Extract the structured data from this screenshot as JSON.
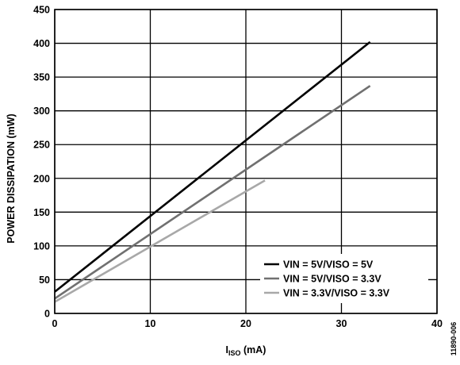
{
  "chart_data": {
    "type": "line",
    "xlabel_main": "I",
    "xlabel_sub": "ISO",
    "xlabel_unit": " (mA)",
    "ylabel": "POWER DISSIPATION (mW)",
    "xlim": [
      0,
      40
    ],
    "ylim": [
      0,
      450
    ],
    "x_ticks": [
      "0",
      "10",
      "20",
      "30",
      "40"
    ],
    "y_ticks": [
      "0",
      "50",
      "100",
      "150",
      "200",
      "250",
      "300",
      "350",
      "400",
      "450"
    ],
    "grid": true,
    "legend_position": "bottom-right",
    "series": [
      {
        "name": "VIN = 5V/VISO = 5V",
        "color": "#000000",
        "x": [
          0,
          33
        ],
        "y": [
          32,
          402
        ]
      },
      {
        "name": "VIN = 5V/VISO = 3.3V",
        "color": "#707070",
        "x": [
          0,
          33
        ],
        "y": [
          22,
          337
        ]
      },
      {
        "name": "VIN = 3.3V/VISO = 3.3V",
        "color": "#a8a8a8",
        "x": [
          0,
          22
        ],
        "y": [
          17,
          197
        ]
      }
    ],
    "figure_id": "11890-006"
  }
}
